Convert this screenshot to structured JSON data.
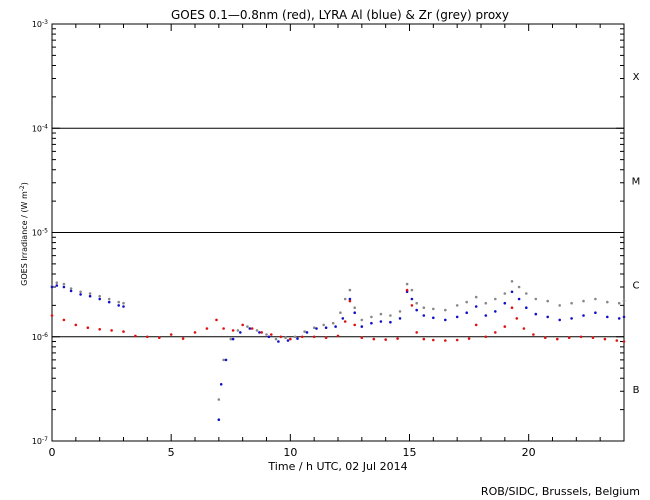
{
  "chart_data": {
    "type": "scatter",
    "title": "GOES 0.1—0.8nm (red), LYRA Al (blue) & Zr (grey) proxy",
    "xlabel": "Time / h UTC, 02 Jul 2014",
    "ylabel_main": "GOES Irradiance / (W m",
    "ylabel_sup": "-2",
    "ylabel_close": ")",
    "credit": "ROB/SIDC, Brussels, Belgium",
    "xlim": [
      0,
      24
    ],
    "ylim": [
      1e-07,
      0.001
    ],
    "yscale": "log",
    "x_ticks": [
      {
        "value": 0,
        "label": "0"
      },
      {
        "value": 5,
        "label": "5"
      },
      {
        "value": 10,
        "label": "10"
      },
      {
        "value": 15,
        "label": "15"
      },
      {
        "value": 20,
        "label": "20"
      }
    ],
    "y_ticks": [
      {
        "exp": -7,
        "label_base": "10",
        "label_exp": "-7"
      },
      {
        "exp": -6,
        "label_base": "10",
        "label_exp": "-6"
      },
      {
        "exp": -5,
        "label_base": "10",
        "label_exp": "-5"
      },
      {
        "exp": -4,
        "label_base": "10",
        "label_exp": "-4"
      },
      {
        "exp": -3,
        "label_base": "10",
        "label_exp": "-3"
      }
    ],
    "threshold_lines": [
      1e-06,
      1e-05,
      0.0001
    ],
    "flare_classes": [
      {
        "label": "B",
        "exp": -6.5
      },
      {
        "label": "C",
        "exp": -5.5
      },
      {
        "label": "M",
        "exp": -4.5
      },
      {
        "label": "X",
        "exp": -3.5
      }
    ],
    "series": [
      {
        "color": "#888888",
        "points": [
          [
            0.0,
            3.1e-06
          ],
          [
            0.2,
            3.3e-06
          ],
          [
            0.5,
            3.2e-06
          ],
          [
            0.8,
            2.9e-06
          ],
          [
            1.2,
            2.7e-06
          ],
          [
            1.6,
            2.6e-06
          ],
          [
            2.0,
            2.45e-06
          ],
          [
            2.4,
            2.3e-06
          ],
          [
            2.8,
            2.15e-06
          ],
          [
            3.0,
            2.1e-06
          ],
          [
            7.0,
            2.5e-07
          ],
          [
            7.2,
            6e-07
          ],
          [
            7.5,
            9.5e-07
          ],
          [
            7.8,
            1.15e-06
          ],
          [
            8.2,
            1.25e-06
          ],
          [
            8.6,
            1.15e-06
          ],
          [
            9.0,
            1.05e-06
          ],
          [
            9.4,
            9.5e-07
          ],
          [
            9.8,
            9.8e-07
          ],
          [
            10.2,
            1e-06
          ],
          [
            10.6,
            1.12e-06
          ],
          [
            11.0,
            1.22e-06
          ],
          [
            11.4,
            1.3e-06
          ],
          [
            11.8,
            1.35e-06
          ],
          [
            12.1,
            1.7e-06
          ],
          [
            12.3,
            2.3e-06
          ],
          [
            12.5,
            2.8e-06
          ],
          [
            12.7,
            1.9e-06
          ],
          [
            13.0,
            1.45e-06
          ],
          [
            13.4,
            1.55e-06
          ],
          [
            13.8,
            1.65e-06
          ],
          [
            14.2,
            1.6e-06
          ],
          [
            14.6,
            1.75e-06
          ],
          [
            14.9,
            3.2e-06
          ],
          [
            15.1,
            2.8e-06
          ],
          [
            15.3,
            2.1e-06
          ],
          [
            15.6,
            1.9e-06
          ],
          [
            16.0,
            1.85e-06
          ],
          [
            16.5,
            1.8e-06
          ],
          [
            17.0,
            2e-06
          ],
          [
            17.4,
            2.15e-06
          ],
          [
            17.8,
            2.4e-06
          ],
          [
            18.2,
            2.1e-06
          ],
          [
            18.6,
            2.3e-06
          ],
          [
            19.0,
            2.6e-06
          ],
          [
            19.3,
            3.4e-06
          ],
          [
            19.6,
            3e-06
          ],
          [
            19.9,
            2.6e-06
          ],
          [
            20.3,
            2.3e-06
          ],
          [
            20.8,
            2.2e-06
          ],
          [
            21.3,
            2e-06
          ],
          [
            21.8,
            2.1e-06
          ],
          [
            22.3,
            2.2e-06
          ],
          [
            22.8,
            2.3e-06
          ],
          [
            23.3,
            2.15e-06
          ],
          [
            23.8,
            2.1e-06
          ],
          [
            24.0,
            2.2e-06
          ]
        ]
      },
      {
        "color": "#1010c8",
        "points": [
          [
            0.0,
            3e-06
          ],
          [
            0.2,
            3.1e-06
          ],
          [
            0.5,
            3e-06
          ],
          [
            0.8,
            2.75e-06
          ],
          [
            1.2,
            2.55e-06
          ],
          [
            1.6,
            2.45e-06
          ],
          [
            2.0,
            2.3e-06
          ],
          [
            2.4,
            2.15e-06
          ],
          [
            2.8,
            2e-06
          ],
          [
            3.0,
            1.95e-06
          ],
          [
            7.0,
            1.6e-07
          ],
          [
            7.1,
            3.5e-07
          ],
          [
            7.3,
            6e-07
          ],
          [
            7.6,
            9.5e-07
          ],
          [
            7.9,
            1.1e-06
          ],
          [
            8.3,
            1.2e-06
          ],
          [
            8.7,
            1.1e-06
          ],
          [
            9.1,
            1e-06
          ],
          [
            9.5,
            9e-07
          ],
          [
            9.9,
            9.2e-07
          ],
          [
            10.3,
            9.6e-07
          ],
          [
            10.7,
            1.1e-06
          ],
          [
            11.1,
            1.2e-06
          ],
          [
            11.5,
            1.22e-06
          ],
          [
            11.9,
            1.25e-06
          ],
          [
            12.2,
            1.5e-06
          ],
          [
            12.5,
            2.3e-06
          ],
          [
            12.7,
            1.7e-06
          ],
          [
            13.0,
            1.25e-06
          ],
          [
            13.4,
            1.35e-06
          ],
          [
            13.8,
            1.4e-06
          ],
          [
            14.2,
            1.38e-06
          ],
          [
            14.6,
            1.5e-06
          ],
          [
            14.9,
            2.7e-06
          ],
          [
            15.1,
            2.3e-06
          ],
          [
            15.3,
            1.8e-06
          ],
          [
            15.6,
            1.6e-06
          ],
          [
            16.0,
            1.52e-06
          ],
          [
            16.5,
            1.45e-06
          ],
          [
            17.0,
            1.55e-06
          ],
          [
            17.4,
            1.7e-06
          ],
          [
            17.8,
            1.95e-06
          ],
          [
            18.2,
            1.6e-06
          ],
          [
            18.6,
            1.75e-06
          ],
          [
            19.0,
            2.1e-06
          ],
          [
            19.3,
            2.7e-06
          ],
          [
            19.6,
            2.3e-06
          ],
          [
            19.9,
            1.9e-06
          ],
          [
            20.3,
            1.65e-06
          ],
          [
            20.8,
            1.55e-06
          ],
          [
            21.3,
            1.45e-06
          ],
          [
            21.8,
            1.5e-06
          ],
          [
            22.3,
            1.6e-06
          ],
          [
            22.8,
            1.7e-06
          ],
          [
            23.3,
            1.55e-06
          ],
          [
            23.8,
            1.5e-06
          ],
          [
            24.0,
            1.55e-06
          ]
        ]
      },
      {
        "color": "#e01010",
        "points": [
          [
            0.0,
            1.6e-06
          ],
          [
            0.5,
            1.45e-06
          ],
          [
            1.0,
            1.3e-06
          ],
          [
            1.5,
            1.22e-06
          ],
          [
            2.0,
            1.18e-06
          ],
          [
            2.5,
            1.15e-06
          ],
          [
            3.0,
            1.12e-06
          ],
          [
            3.5,
            1.02e-06
          ],
          [
            4.0,
            1e-06
          ],
          [
            4.5,
            9.8e-07
          ],
          [
            5.0,
            1.05e-06
          ],
          [
            5.5,
            9.6e-07
          ],
          [
            6.0,
            1.1e-06
          ],
          [
            6.5,
            1.2e-06
          ],
          [
            6.9,
            1.45e-06
          ],
          [
            7.2,
            1.2e-06
          ],
          [
            7.6,
            1.15e-06
          ],
          [
            8.0,
            1.3e-06
          ],
          [
            8.4,
            1.2e-06
          ],
          [
            8.8,
            1.1e-06
          ],
          [
            9.2,
            1.05e-06
          ],
          [
            9.6,
            1e-06
          ],
          [
            10.0,
            9.5e-07
          ],
          [
            10.5,
            1e-06
          ],
          [
            11.0,
            1e-06
          ],
          [
            11.5,
            9.8e-07
          ],
          [
            12.0,
            1.02e-06
          ],
          [
            12.3,
            1.4e-06
          ],
          [
            12.5,
            2.2e-06
          ],
          [
            12.7,
            1.3e-06
          ],
          [
            13.0,
            9.8e-07
          ],
          [
            13.5,
            9.5e-07
          ],
          [
            14.0,
            9.4e-07
          ],
          [
            14.5,
            9.6e-07
          ],
          [
            14.9,
            2.8e-06
          ],
          [
            15.1,
            2e-06
          ],
          [
            15.3,
            1.1e-06
          ],
          [
            15.6,
            9.5e-07
          ],
          [
            16.0,
            9.3e-07
          ],
          [
            16.5,
            9.2e-07
          ],
          [
            17.0,
            9.3e-07
          ],
          [
            17.5,
            9.6e-07
          ],
          [
            17.8,
            1.3e-06
          ],
          [
            18.2,
            1e-06
          ],
          [
            18.6,
            1.1e-06
          ],
          [
            19.0,
            1.25e-06
          ],
          [
            19.3,
            1.9e-06
          ],
          [
            19.5,
            1.5e-06
          ],
          [
            19.8,
            1.2e-06
          ],
          [
            20.2,
            1.05e-06
          ],
          [
            20.7,
            9.8e-07
          ],
          [
            21.2,
            9.5e-07
          ],
          [
            21.7,
            9.8e-07
          ],
          [
            22.2,
            1e-06
          ],
          [
            22.7,
            9.8e-07
          ],
          [
            23.2,
            9.5e-07
          ],
          [
            23.7,
            9.2e-07
          ],
          [
            24.0,
            9e-07
          ]
        ]
      }
    ]
  }
}
